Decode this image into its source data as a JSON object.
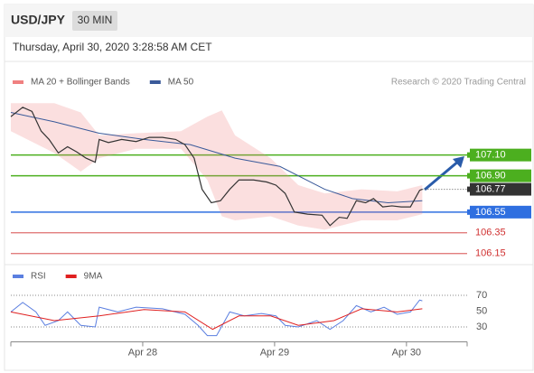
{
  "header": {
    "symbol": "USD/JPY",
    "interval": "30 MIN",
    "timestamp": "Thursday, April 30, 2020 3:28:58 AM CET"
  },
  "chart_data": [
    {
      "type": "line",
      "credit": "Research © 2020 Trading Central",
      "xlim": [
        0,
        3.46
      ],
      "ylim": [
        106.07,
        107.68
      ],
      "series": [
        {
          "name": "MA 20 + Bollinger Bands",
          "color": "#f08080",
          "x": [
            0,
            0.33,
            0.53,
            0.67,
            0.95,
            1.29,
            1.49,
            1.6,
            1.7,
            1.97,
            2.18,
            2.38,
            2.66,
            2.93,
            3.12
          ],
          "upper": [
            107.6,
            107.6,
            107.51,
            107.29,
            107.31,
            107.33,
            107.47,
            107.53,
            107.29,
            107.07,
            106.81,
            106.73,
            106.77,
            106.75,
            106.81
          ],
          "lower": [
            107.33,
            107.12,
            106.94,
            107.07,
            107.16,
            107.16,
            106.86,
            106.51,
            106.47,
            106.51,
            106.42,
            106.38,
            106.47,
            106.47,
            106.53
          ]
        },
        {
          "name": "MA 50",
          "color": "#3a5a9a",
          "x": [
            0,
            0.33,
            0.67,
            1.01,
            1.36,
            1.7,
            2.04,
            2.38,
            2.59,
            2.86,
            3.12
          ],
          "values": [
            107.51,
            107.42,
            107.31,
            107.25,
            107.2,
            107.07,
            106.99,
            106.77,
            106.68,
            106.64,
            106.66
          ]
        },
        {
          "color": "#333333",
          "x": [
            0,
            0.09,
            0.16,
            0.23,
            0.29,
            0.36,
            0.43,
            0.5,
            0.57,
            0.64,
            0.67,
            0.74,
            0.84,
            0.95,
            1.05,
            1.15,
            1.25,
            1.32,
            1.39,
            1.45,
            1.52,
            1.59,
            1.66,
            1.73,
            1.84,
            1.94,
            2.01,
            2.08,
            2.15,
            2.25,
            2.36,
            2.42,
            2.49,
            2.55,
            2.62,
            2.69,
            2.75,
            2.82,
            2.89,
            2.96,
            3.03,
            3.1,
            3.12
          ],
          "values": [
            107.47,
            107.56,
            107.52,
            107.33,
            107.25,
            107.12,
            107.18,
            107.13,
            107.07,
            107.03,
            107.25,
            107.22,
            107.25,
            107.23,
            107.27,
            107.27,
            107.25,
            107.2,
            107.07,
            106.77,
            106.64,
            106.66,
            106.77,
            106.86,
            106.86,
            106.84,
            106.81,
            106.73,
            106.55,
            106.53,
            106.52,
            106.42,
            106.5,
            106.49,
            106.66,
            106.64,
            106.68,
            106.6,
            106.61,
            106.6,
            106.6,
            106.76,
            106.77
          ]
        }
      ],
      "levels": [
        {
          "value": 107.1,
          "label": "107.10",
          "color": "#4caf1f"
        },
        {
          "value": 106.9,
          "label": "106.90",
          "color": "#4caf1f"
        },
        {
          "value": 106.77,
          "label": "106.77",
          "color": "#333333"
        },
        {
          "value": 106.55,
          "label": "106.55",
          "color": "#2f6fe0"
        },
        {
          "value": 106.35,
          "label": "106.35",
          "color": "#d03030"
        },
        {
          "value": 106.15,
          "label": "106.15",
          "color": "#d03030"
        }
      ]
    },
    {
      "type": "line",
      "xlim": [
        0,
        3.46
      ],
      "ylim": [
        10,
        100
      ],
      "yticks": [
        70,
        50,
        30
      ],
      "xticks": [
        {
          "value": 1,
          "label": "Apr 28"
        },
        {
          "value": 2,
          "label": "Apr 29"
        },
        {
          "value": 3,
          "label": "Apr 30"
        }
      ],
      "series": [
        {
          "name": "RSI",
          "color": "#5b7fe0",
          "x": [
            0,
            0.09,
            0.19,
            0.26,
            0.36,
            0.43,
            0.53,
            0.64,
            0.67,
            0.81,
            0.95,
            1.15,
            1.32,
            1.42,
            1.49,
            1.56,
            1.66,
            1.77,
            1.9,
            2.01,
            2.08,
            2.18,
            2.32,
            2.42,
            2.52,
            2.62,
            2.73,
            2.83,
            2.93,
            3.03,
            3.1,
            3.12
          ],
          "values": [
            49,
            61,
            49,
            32,
            38,
            49,
            32,
            30,
            55,
            49,
            55,
            53,
            46,
            32,
            19,
            19,
            49,
            44,
            47,
            44,
            32,
            30,
            38,
            27,
            38,
            57,
            49,
            55,
            46,
            49,
            64,
            63
          ]
        },
        {
          "name": "9MA",
          "color": "#e02020",
          "x": [
            0,
            0.33,
            0.67,
            1.01,
            1.32,
            1.53,
            1.73,
            1.97,
            2.18,
            2.45,
            2.66,
            2.93,
            3.12
          ],
          "values": [
            49,
            38,
            44,
            52,
            49,
            27,
            44,
            44,
            32,
            38,
            53,
            49,
            53
          ]
        }
      ]
    }
  ]
}
